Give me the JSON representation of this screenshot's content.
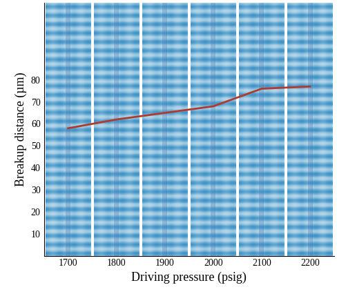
{
  "chart_data": {
    "type": "line",
    "x_label": "Driving pressure (psig)",
    "y_label": "Breakup distance (µm)",
    "categories": [
      "1700",
      "1800",
      "1900",
      "2000",
      "2100",
      "2200"
    ],
    "values": [
      58,
      62,
      65,
      68,
      76,
      77
    ],
    "color": "#b03a2e",
    "ylim": [
      0,
      115
    ],
    "yticks": [
      10,
      20,
      30,
      40,
      50,
      60,
      70,
      80
    ],
    "grid": false
  }
}
